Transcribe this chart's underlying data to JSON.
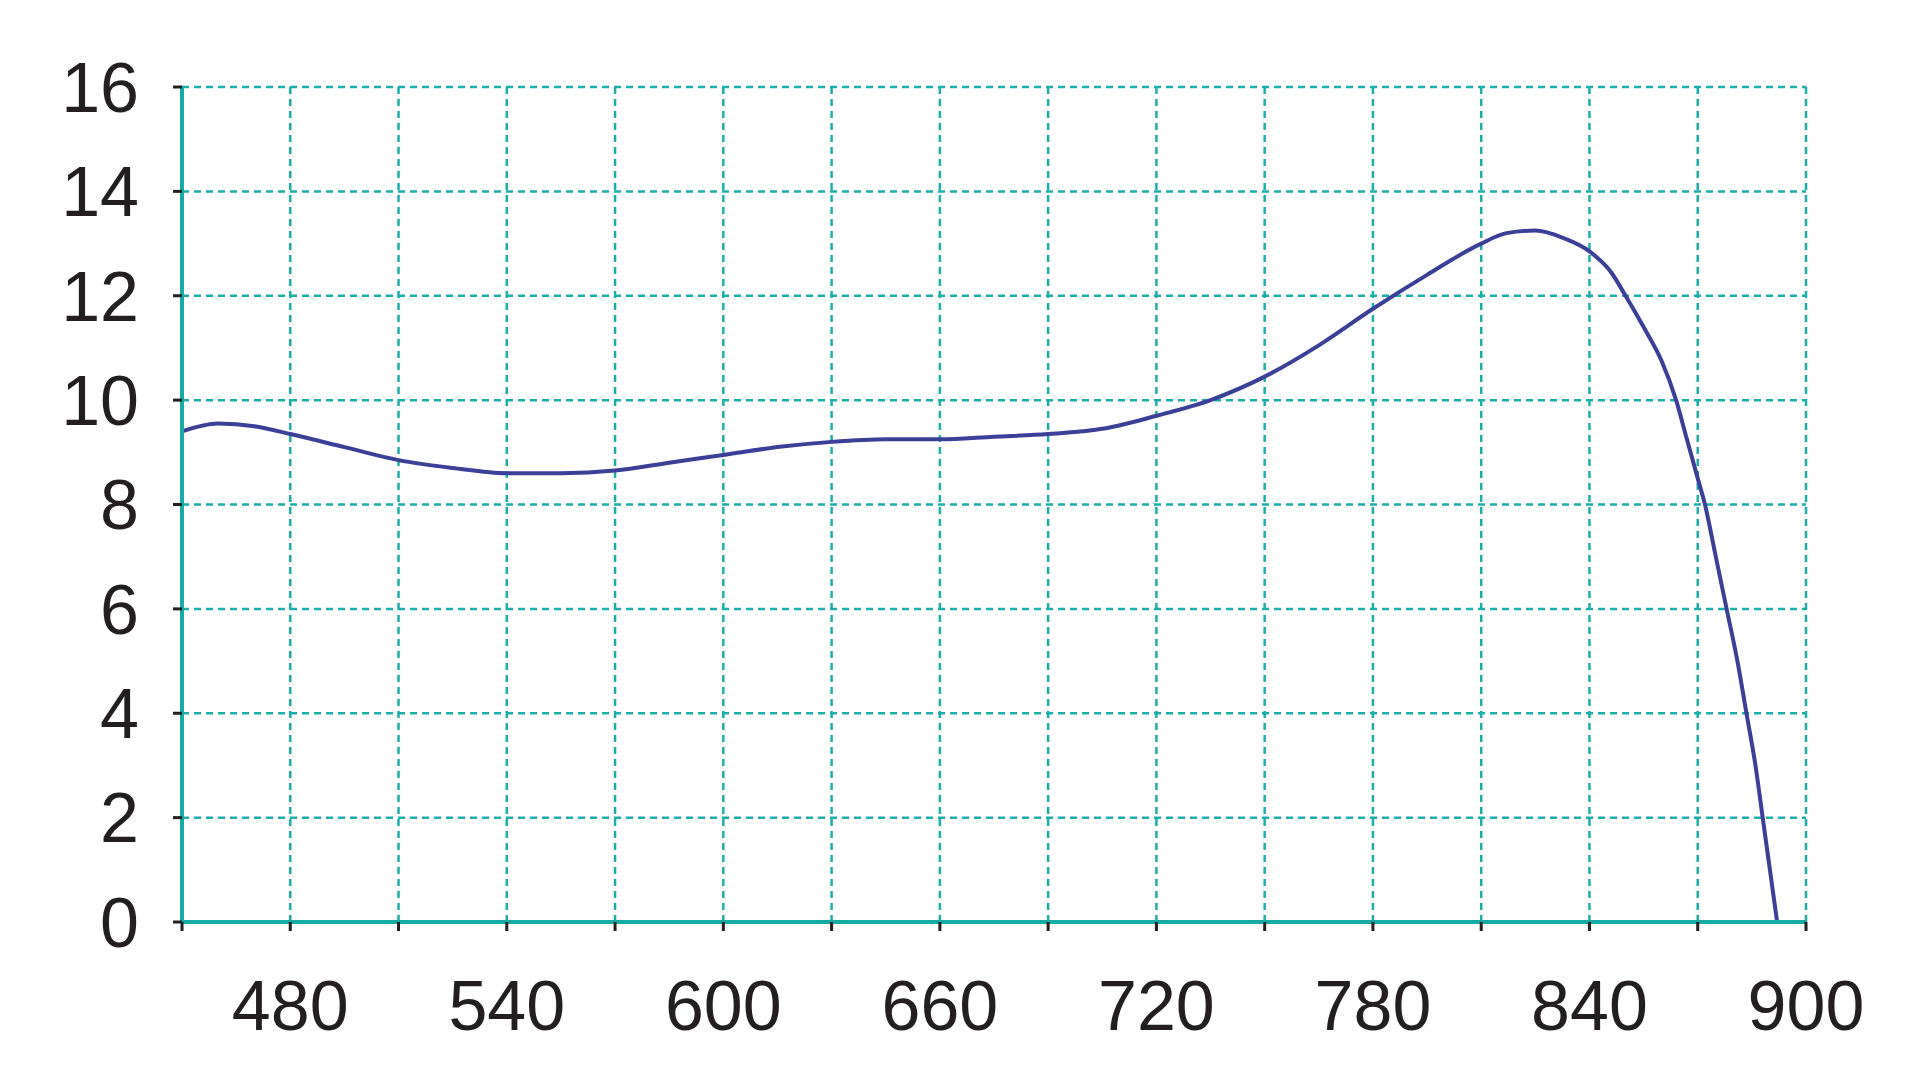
{
  "chart_data": {
    "type": "line",
    "x": [
      450,
      460,
      470,
      480,
      495,
      510,
      525,
      540,
      555,
      570,
      585,
      600,
      615,
      630,
      645,
      660,
      675,
      690,
      705,
      720,
      735,
      750,
      765,
      780,
      795,
      810,
      817,
      825,
      833,
      840,
      846,
      850,
      855,
      860,
      864,
      867,
      870,
      872,
      875,
      878,
      881,
      883.5,
      886,
      888,
      890,
      892
    ],
    "series": [
      {
        "color": "#3a3f98",
        "values": [
          9.4,
          9.55,
          9.5,
          9.35,
          9.1,
          8.85,
          8.7,
          8.6,
          8.6,
          8.65,
          8.8,
          8.95,
          9.1,
          9.2,
          9.25,
          9.25,
          9.3,
          9.35,
          9.45,
          9.7,
          10.0,
          10.45,
          11.05,
          11.75,
          12.4,
          13.0,
          13.2,
          13.25,
          13.1,
          12.85,
          12.45,
          12.0,
          11.4,
          10.75,
          10.0,
          9.25,
          8.5,
          8.0,
          7.0,
          6.0,
          5.0,
          4.0,
          3.0,
          2.0,
          1.0,
          0
        ]
      }
    ],
    "xlim": [
      450,
      900
    ],
    "xticks": [
      {
        "value": 450,
        "label": null
      },
      480,
      {
        "value": 510,
        "label": null
      },
      540,
      {
        "value": 570,
        "label": null
      },
      600,
      {
        "value": 630,
        "label": null
      },
      660,
      {
        "value": 690,
        "label": null
      },
      720,
      {
        "value": 750,
        "label": null
      },
      780,
      {
        "value": 810,
        "label": null
      },
      840,
      {
        "value": 870,
        "label": null
      },
      900
    ],
    "ylim": [
      0,
      16
    ],
    "yticks": [
      0,
      2,
      4,
      6,
      8,
      10,
      12,
      14,
      16
    ],
    "grid": true
  }
}
